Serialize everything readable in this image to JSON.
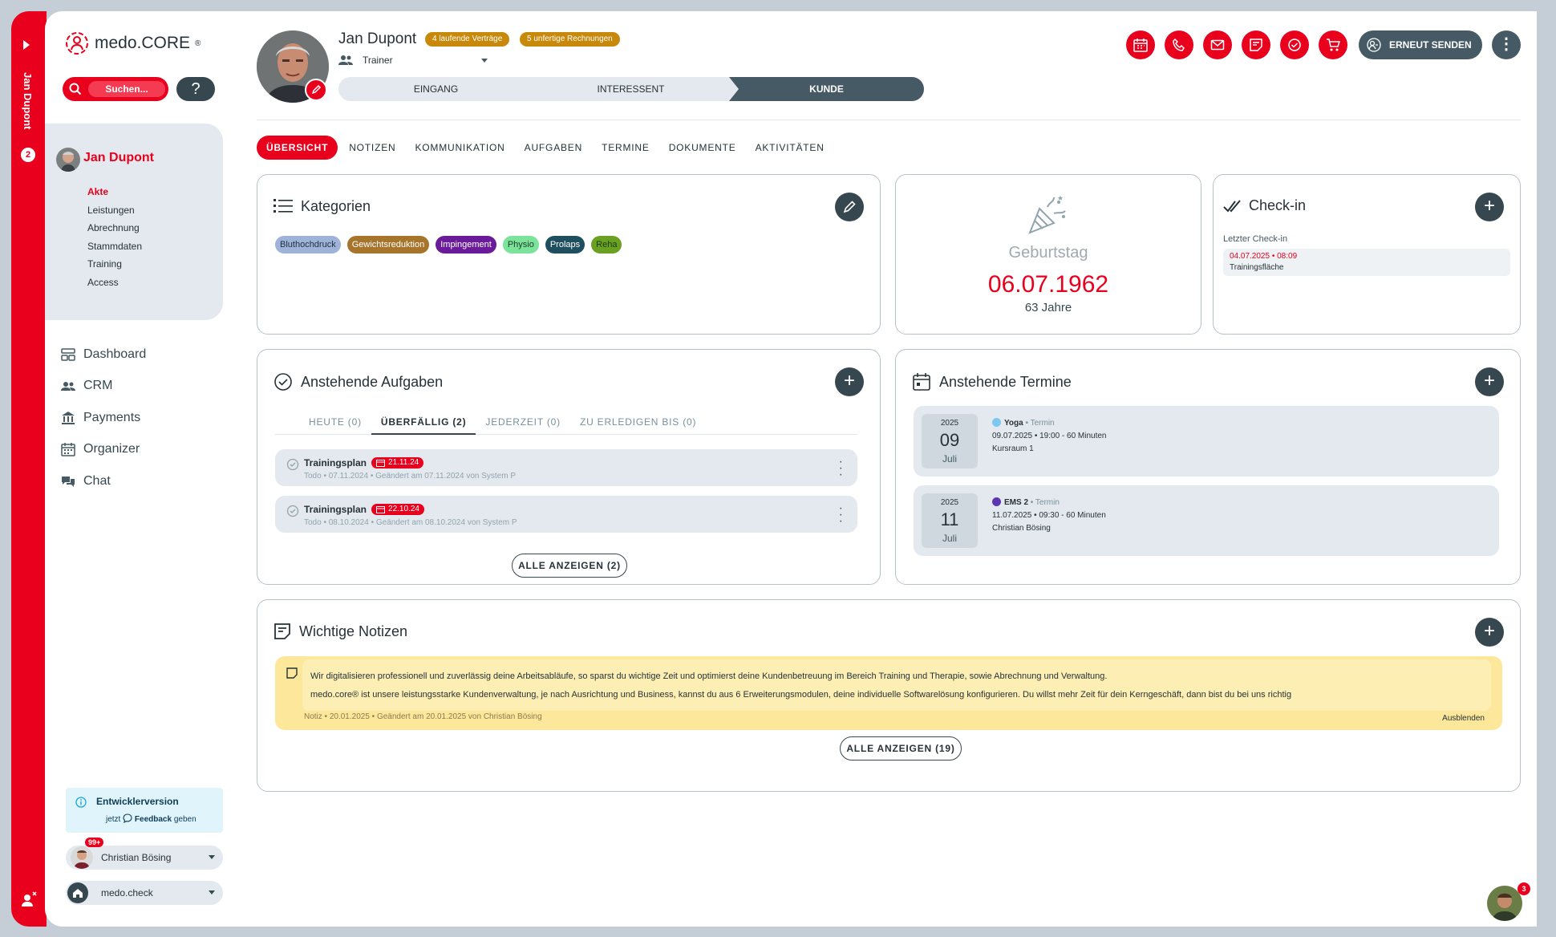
{
  "sidebar": {
    "vertical_name": "Jan Dupont",
    "vertical_count": "2",
    "logo": {
      "text": "medo.CORE",
      "mark": "®"
    },
    "search": {
      "label": "Suchen..."
    },
    "help_label": "?",
    "client": {
      "name": "Jan Dupont",
      "items": [
        "Akte",
        "Leistungen",
        "Abrechnung",
        "Stammdaten",
        "Training",
        "Access"
      ]
    },
    "nav": [
      {
        "label": "Dashboard",
        "icon": "dashboard-icon"
      },
      {
        "label": "CRM",
        "icon": "people-icon"
      },
      {
        "label": "Payments",
        "icon": "bank-icon"
      },
      {
        "label": "Organizer",
        "icon": "calendar-icon"
      },
      {
        "label": "Chat",
        "icon": "chat-icon"
      }
    ],
    "dev": {
      "title": "Entwicklerversion",
      "pre": "jetzt",
      "link": "Feedback",
      "post": "geben"
    },
    "user": {
      "name": "Christian Bösing",
      "badge": "99+"
    },
    "check": {
      "name": "medo.check"
    }
  },
  "header": {
    "name": "Jan Dupont",
    "tags": [
      "4 laufende Verträge",
      "5 unfertige Rechnungen"
    ],
    "role": "Trainer",
    "stages": [
      "EINGANG",
      "INTERESSENT",
      "KUNDE"
    ],
    "send_label": "ERNEUT SENDEN",
    "more_label": "⋮"
  },
  "tabs": [
    "ÜBERSICHT",
    "NOTIZEN",
    "KOMMUNIKATION",
    "AUFGABEN",
    "TERMINE",
    "DOKUMENTE",
    "AKTIVITÄTEN"
  ],
  "categories": {
    "title": "Kategorien",
    "chips": [
      {
        "label": "Bluthochdruck",
        "color": "#9fb3d9",
        "text": "#1f2d44"
      },
      {
        "label": "Gewichtsreduktion",
        "color": "#a6742a",
        "text": "#ffffff"
      },
      {
        "label": "Impingement",
        "color": "#6a1b9a",
        "text": "#ffffff"
      },
      {
        "label": "Physio",
        "color": "#7be39a",
        "text": "#1d3b26"
      },
      {
        "label": "Prolaps",
        "color": "#1f4e5f",
        "text": "#ffffff"
      },
      {
        "label": "Reha",
        "color": "#6aa123",
        "text": "#1d3b10"
      }
    ]
  },
  "birthday": {
    "label": "Geburtstag",
    "date": "06.07.1962",
    "age": "63 Jahre"
  },
  "checkin": {
    "title": "Check-in",
    "last_label": "Letzter Check-in",
    "date": "04.07.2025 • 08:09",
    "place": "Trainingsfläche"
  },
  "tasks": {
    "title": "Anstehende Aufgaben",
    "subtabs": [
      "HEUTE (0)",
      "ÜBERFÄLLIG (2)",
      "JEDERZEIT (0)",
      "ZU ERLEDIGEN BIS (0)"
    ],
    "items": [
      {
        "name": "Trainingsplan",
        "due": "21.11.24",
        "meta": "Todo • 07.11.2024 • Geändert am 07.11.2024 von System P"
      },
      {
        "name": "Trainingsplan",
        "due": "22.10.24",
        "meta": "Todo • 08.10.2024 • Geändert am 08.10.2024 von System P"
      }
    ],
    "show_all": "ALLE ANZEIGEN (2)"
  },
  "appointments": {
    "title": "Anstehende Termine",
    "items": [
      {
        "year": "2025",
        "day": "09",
        "month": "Juli",
        "name": "Yoga",
        "type": "Termin",
        "dot": "#7ec8ef",
        "when": "09.07.2025 • 19:00 - 60 Minuten",
        "where": "Kursraum 1"
      },
      {
        "year": "2025",
        "day": "11",
        "month": "Juli",
        "name": "EMS 2",
        "type": "Termin",
        "dot": "#5e35b1",
        "when": "11.07.2025 • 09:30 - 60 Minuten",
        "where": "Christian Bösing"
      }
    ]
  },
  "notes": {
    "title": "Wichtige Notizen",
    "line1": "Wir digitalisieren professionell und zuverlässig deine Arbeitsabläufe, so sparst du wichtige Zeit und optimierst deine Kundenbetreuung im Bereich Training und Therapie, sowie Abrechnung und Verwaltung.",
    "line2": "medo.core®  ist unsere leistungsstarke Kundenverwaltung, je nach Ausrichtung und Business, kannst du aus 6 Erweiterungsmodulen, deine individuelle Softwarelösung konfigurieren. Du willst mehr Zeit für dein Kerngeschäft, dann bist du bei uns richtig",
    "meta": "Notiz • 20.01.2025 • Geändert am 20.01.2025 von Christian Bösing",
    "hide_label": "Ausblenden",
    "show_all": "ALLE ANZEIGEN (19)"
  },
  "fab_badge": "3"
}
